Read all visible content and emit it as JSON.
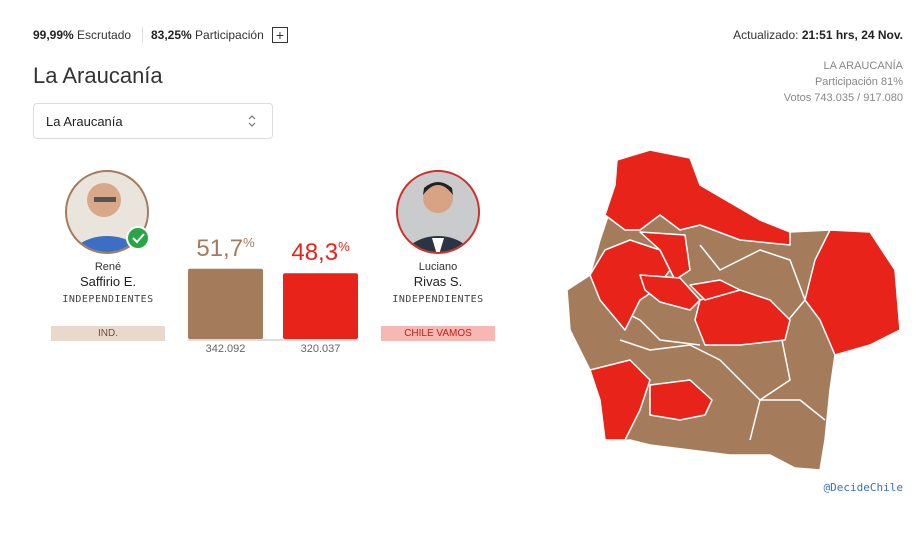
{
  "header": {
    "counted_value": "99,99%",
    "counted_label": "Escrutado",
    "turnout_value": "83,25%",
    "turnout_label": "Participación",
    "expand_icon": "+",
    "updated_label": "Actualizado:",
    "updated_value": "21:51 hrs, 24 Nov."
  },
  "title": "La Araucanía",
  "selector": {
    "value": "La Araucanía"
  },
  "region_info": {
    "name": "LA ARAUCANÍA",
    "turnout": "Participación 81%",
    "votes": "Votos 743.035 / 917.080"
  },
  "candidates": [
    {
      "first_name": "René",
      "last_name": "Saffirio E.",
      "affiliation": "INDEPENDIENTES",
      "party": "IND.",
      "share": 51.7,
      "share_label": "51,7",
      "share_unit": "%",
      "votes": "342.092",
      "color": "#a47c5b"
    },
    {
      "first_name": "Luciano",
      "last_name": "Rivas S.",
      "affiliation": "INDEPENDIENTES",
      "party": "CHILE VAMOS",
      "share": 48.3,
      "share_label": "48,3",
      "share_unit": "%",
      "votes": "320.037",
      "color": "#e8231a"
    }
  ],
  "credit": "@DecideChile"
}
